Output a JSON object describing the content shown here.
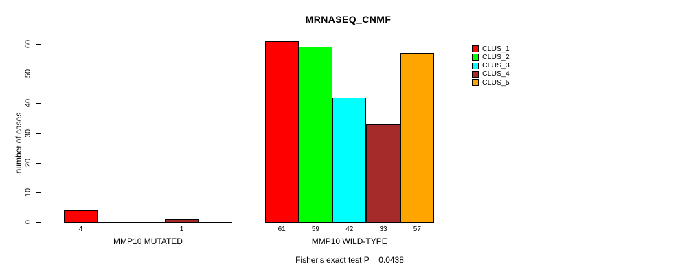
{
  "chart_data": {
    "type": "bar",
    "title": "MRNASEQ_CNMF",
    "ylabel": "number of cases",
    "ylim": [
      0,
      60
    ],
    "yticks": [
      0,
      10,
      20,
      30,
      40,
      50,
      60
    ],
    "grid": false,
    "legend_position": "top-right",
    "series": [
      {
        "name": "CLUS_1",
        "color": "#FF0000"
      },
      {
        "name": "CLUS_2",
        "color": "#00FF00"
      },
      {
        "name": "CLUS_3",
        "color": "#00FFFF"
      },
      {
        "name": "CLUS_4",
        "color": "#A52A2A"
      },
      {
        "name": "CLUS_5",
        "color": "#FFA500"
      }
    ],
    "groups": [
      {
        "label": "MMP10 MUTATED",
        "values": [
          4,
          0,
          0,
          1,
          0
        ],
        "bar_labels": [
          "4",
          "",
          "",
          "1",
          ""
        ]
      },
      {
        "label": "MMP10 WILD-TYPE",
        "values": [
          61,
          59,
          42,
          33,
          57
        ],
        "bar_labels": [
          "61",
          "59",
          "42",
          "33",
          "57"
        ]
      }
    ],
    "footer": "Fisher's exact test P = 0.0438"
  }
}
